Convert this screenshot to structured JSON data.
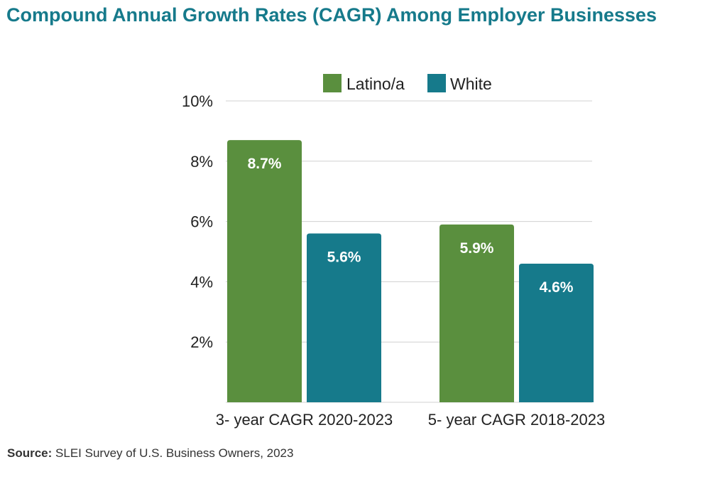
{
  "title": "Compound Annual Growth Rates (CAGR) Among Employer Businesses",
  "source": {
    "label": "Source:",
    "text": "SLEI Survey of U.S. Business Owners, 2023"
  },
  "chart_data": {
    "type": "bar",
    "categories": [
      "3- year CAGR 2020-2023",
      "5- year CAGR 2018-2023"
    ],
    "series": [
      {
        "name": "Latino/a",
        "values": [
          8.7,
          5.9
        ],
        "labels": [
          "8.7%",
          "5.9%"
        ],
        "color": "#5a8f3e"
      },
      {
        "name": "White",
        "values": [
          5.6,
          4.6
        ],
        "labels": [
          "5.6%",
          "4.6%"
        ],
        "color": "#167a8b"
      }
    ],
    "ylim": [
      0,
      10
    ],
    "yticks": [
      2,
      4,
      6,
      8,
      10
    ],
    "ytick_labels": [
      "2%",
      "4%",
      "6%",
      "8%",
      "10%"
    ],
    "grid": true,
    "legend": "top"
  }
}
